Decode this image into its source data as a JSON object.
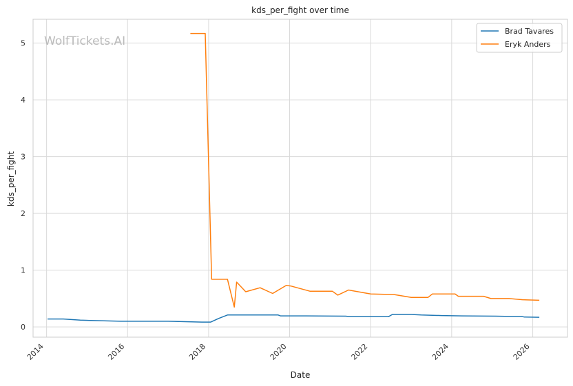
{
  "watermark": "WolfTickets.AI",
  "chart_data": {
    "type": "line",
    "title": "kds_per_fight over time",
    "xlabel": "Date",
    "ylabel": "kds_per_fight",
    "x_is_date": true,
    "xlim": [
      "2013-09-01",
      "2026-11-10"
    ],
    "ylim": [
      -0.18,
      5.42
    ],
    "x_ticks": [
      "2014-01-01",
      "2016-01-01",
      "2018-01-01",
      "2020-01-01",
      "2022-01-01",
      "2024-01-01",
      "2026-01-01"
    ],
    "x_tick_labels": [
      "2014",
      "2016",
      "2018",
      "2020",
      "2022",
      "2024",
      "2026"
    ],
    "y_ticks": [
      0,
      1,
      2,
      3,
      4,
      5
    ],
    "y_tick_labels": [
      "0",
      "1",
      "2",
      "3",
      "4",
      "5"
    ],
    "grid": true,
    "legend_position": "top-right",
    "series": [
      {
        "name": "Brad Tavares",
        "color": "#1f77b4",
        "points": [
          [
            "2014-01-10",
            0.14
          ],
          [
            "2014-06-01",
            0.14
          ],
          [
            "2014-11-01",
            0.12
          ],
          [
            "2015-05-01",
            0.11
          ],
          [
            "2015-11-01",
            0.1
          ],
          [
            "2016-06-01",
            0.1
          ],
          [
            "2017-01-01",
            0.1
          ],
          [
            "2017-08-01",
            0.09
          ],
          [
            "2017-11-01",
            0.085
          ],
          [
            "2018-01-20",
            0.085
          ],
          [
            "2018-04-01",
            0.15
          ],
          [
            "2018-06-20",
            0.21
          ],
          [
            "2019-01-01",
            0.21
          ],
          [
            "2019-09-20",
            0.21
          ],
          [
            "2019-10-10",
            0.195
          ],
          [
            "2020-06-01",
            0.195
          ],
          [
            "2021-05-20",
            0.19
          ],
          [
            "2021-07-01",
            0.18
          ],
          [
            "2022-06-10",
            0.18
          ],
          [
            "2022-07-15",
            0.22
          ],
          [
            "2023-01-01",
            0.22
          ],
          [
            "2023-04-01",
            0.21
          ],
          [
            "2023-10-01",
            0.2
          ],
          [
            "2024-04-01",
            0.195
          ],
          [
            "2025-02-01",
            0.19
          ],
          [
            "2025-06-01",
            0.185
          ],
          [
            "2025-09-20",
            0.185
          ],
          [
            "2025-10-15",
            0.175
          ],
          [
            "2026-03-01",
            0.17
          ]
        ]
      },
      {
        "name": "Eryk Anders",
        "color": "#ff7f0e",
        "points": [
          [
            "2017-07-20",
            5.17
          ],
          [
            "2017-12-01",
            5.17
          ],
          [
            "2018-01-28",
            0.84
          ],
          [
            "2018-06-20",
            0.84
          ],
          [
            "2018-08-20",
            0.35
          ],
          [
            "2018-09-10",
            0.79
          ],
          [
            "2018-12-01",
            0.62
          ],
          [
            "2019-04-10",
            0.69
          ],
          [
            "2019-08-01",
            0.59
          ],
          [
            "2019-12-01",
            0.73
          ],
          [
            "2020-01-15",
            0.72
          ],
          [
            "2020-07-01",
            0.63
          ],
          [
            "2021-01-20",
            0.63
          ],
          [
            "2021-03-10",
            0.56
          ],
          [
            "2021-06-15",
            0.65
          ],
          [
            "2022-01-01",
            0.58
          ],
          [
            "2022-08-01",
            0.57
          ],
          [
            "2023-01-01",
            0.52
          ],
          [
            "2023-06-01",
            0.52
          ],
          [
            "2023-07-10",
            0.58
          ],
          [
            "2024-02-01",
            0.58
          ],
          [
            "2024-03-01",
            0.54
          ],
          [
            "2024-10-15",
            0.54
          ],
          [
            "2024-12-20",
            0.5
          ],
          [
            "2025-06-01",
            0.5
          ],
          [
            "2025-10-01",
            0.48
          ],
          [
            "2026-03-01",
            0.47
          ]
        ]
      }
    ]
  }
}
